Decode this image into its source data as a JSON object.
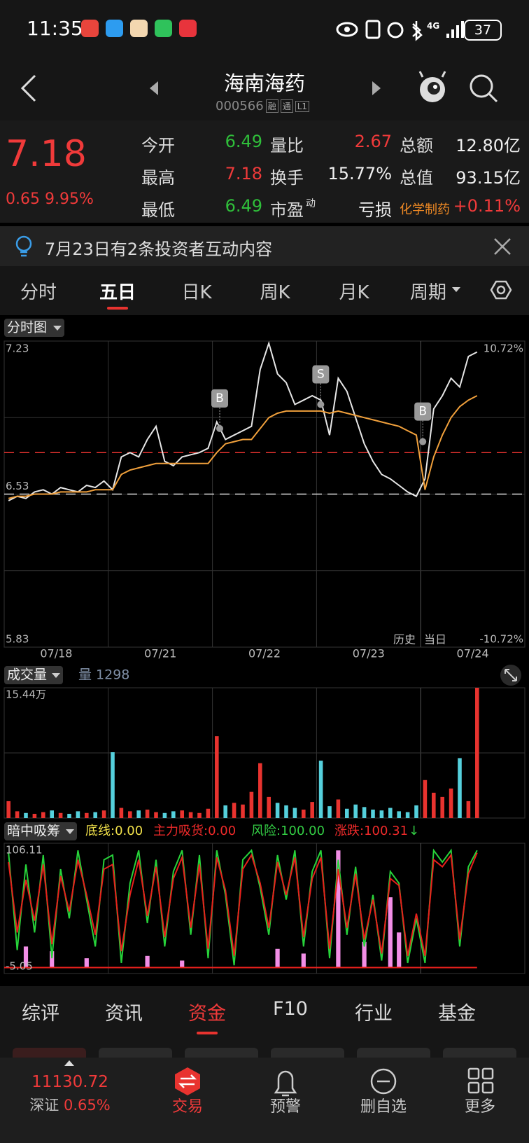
{
  "status": {
    "time": "11:35",
    "network": "4G",
    "battery": "37"
  },
  "header": {
    "title": "海南海药",
    "code": "000566",
    "badges": [
      "融",
      "通",
      "L1"
    ]
  },
  "quote": {
    "price": "7.18",
    "change": "0.65",
    "pct": "9.95%",
    "rows": [
      [
        {
          "label": "今开",
          "value": "6.49",
          "tone": "down"
        },
        {
          "label": "量比",
          "value": "2.67",
          "tone": "up"
        },
        {
          "label": "总额",
          "value": "12.80亿",
          "tone": "plain"
        }
      ],
      [
        {
          "label": "最高",
          "value": "7.18",
          "tone": "up"
        },
        {
          "label": "换手",
          "value": "15.77%",
          "tone": "plain"
        },
        {
          "label": "总值",
          "value": "93.15亿",
          "tone": "plain"
        }
      ],
      [
        {
          "label": "最低",
          "value": "6.49",
          "tone": "down"
        },
        {
          "label": "市盈",
          "sup": "动",
          "value": "亏损",
          "tone": "plain"
        },
        {
          "label": "化学制药",
          "label_tone": "sector",
          "value": "+0.11%",
          "tone": "up"
        }
      ]
    ]
  },
  "notice": "7月23日有2条投资者互动内容",
  "tabs": {
    "items": [
      "分时",
      "五日",
      "日K",
      "周K",
      "月K",
      "周期"
    ],
    "active": 1
  },
  "chart_data": [
    {
      "type": "line",
      "title": "分时图",
      "categories": [
        "07/18",
        "07/21",
        "07/22",
        "07/23",
        "07/24"
      ],
      "ylim": [
        5.83,
        7.23
      ],
      "yticks": [
        7.23,
        6.53,
        5.83
      ],
      "y2lim": [
        -10.72,
        10.72
      ],
      "y2ticks": [
        {
          "value": 10.72,
          "label": "10.72%"
        },
        {
          "value": -10.72,
          "label": "-10.72%"
        }
      ],
      "prev_close": 6.53,
      "cost_line": 6.72,
      "series": [
        {
          "color": "#e6e6e6",
          "values": [
            [
              6.5,
              6.52,
              6.51,
              6.54,
              6.55,
              6.53,
              6.56,
              6.55,
              6.54,
              6.57,
              6.56,
              6.59
            ],
            [
              6.55,
              6.7,
              6.72,
              6.7,
              6.78,
              6.84,
              6.68,
              6.66,
              6.7,
              6.71,
              6.72,
              6.74
            ],
            [
              6.86,
              6.78,
              6.8,
              6.82,
              6.84,
              7.1,
              7.22,
              7.08,
              7.04,
              6.94,
              6.96,
              6.98
            ],
            [
              6.96,
              6.8,
              7.06,
              7.0,
              6.88,
              6.76,
              6.68,
              6.62,
              6.6,
              6.57,
              6.54,
              6.52
            ],
            [
              6.6,
              6.92,
              6.98,
              7.06,
              7.02,
              7.16,
              7.18
            ]
          ]
        },
        {
          "color": "#f0a03c",
          "values": [
            [
              6.51,
              6.52,
              6.52,
              6.53,
              6.53,
              6.53,
              6.54,
              6.54,
              6.54,
              6.54,
              6.55,
              6.55
            ],
            [
              6.55,
              6.62,
              6.64,
              6.65,
              6.66,
              6.67,
              6.67,
              6.67,
              6.67,
              6.67,
              6.67,
              6.67
            ],
            [
              6.72,
              6.76,
              6.77,
              6.78,
              6.78,
              6.83,
              6.88,
              6.9,
              6.91,
              6.91,
              6.91,
              6.91
            ],
            [
              6.91,
              6.9,
              6.91,
              6.9,
              6.89,
              6.88,
              6.87,
              6.86,
              6.85,
              6.84,
              6.82,
              6.8
            ],
            [
              6.55,
              6.7,
              6.8,
              6.88,
              6.93,
              6.96,
              6.98
            ]
          ]
        }
      ],
      "signals": [
        {
          "label": "B",
          "x": 2.07,
          "y": 6.83
        },
        {
          "label": "S",
          "x": 3.04,
          "y": 6.94
        },
        {
          "label": "B",
          "x": 4.02,
          "y": 6.77
        }
      ],
      "notes": [
        "历史",
        "当日"
      ]
    },
    {
      "type": "bar",
      "title": "成交量",
      "subtitle": "量 1298",
      "ylim": [
        0,
        15.44
      ],
      "yticks": [
        {
          "value": 15.44,
          "label": "15.44万"
        }
      ],
      "colors": {
        "up": "#e8332f",
        "down": "#55d0dc"
      },
      "values": [
        [
          2.0,
          0.8,
          0.6,
          0.5,
          0.7,
          0.9,
          0.6,
          0.5,
          0.8,
          0.6,
          0.7,
          0.9
        ],
        [
          7.8,
          1.2,
          0.8,
          0.9,
          1.0,
          0.7,
          0.6,
          0.8,
          0.9,
          0.7,
          0.6,
          1.1
        ],
        [
          9.7,
          1.5,
          1.8,
          1.6,
          3.1,
          6.5,
          2.5,
          1.8,
          1.5,
          1.2,
          1.0,
          1.9
        ],
        [
          6.8,
          1.4,
          2.2,
          1.1,
          1.6,
          1.3,
          1.0,
          0.9,
          1.2,
          0.8,
          0.7,
          1.5
        ],
        [
          4.5,
          3.0,
          2.5,
          3.5,
          7.1,
          2.0,
          15.44
        ]
      ]
    },
    {
      "type": "line",
      "title": "暗中吸筹",
      "legend": [
        {
          "text": "底线:0.00",
          "color": "#f0e04a"
        },
        {
          "text": "主力吸货:0.00",
          "color": "#ee2a2a"
        },
        {
          "text": "风险:100.00",
          "color": "#33cc44"
        },
        {
          "text": "涨跌:100.31",
          "color": "#ee2a2a",
          "arrow": "↓",
          "arrow_color": "#33cc44"
        }
      ],
      "ylim": [
        -5.05,
        106.11
      ],
      "yticks": [
        106.11,
        -5.05
      ],
      "bars": {
        "color": "#f28ee6",
        "values": [
          [
            0,
            0,
            18,
            0,
            0,
            14,
            0,
            0,
            0,
            8,
            0,
            0
          ],
          [
            0,
            0,
            0,
            0,
            10,
            0,
            0,
            0,
            6,
            0,
            0,
            0
          ],
          [
            0,
            0,
            0,
            0,
            0,
            0,
            0,
            16,
            0,
            0,
            12,
            0
          ],
          [
            0,
            0,
            100,
            0,
            0,
            22,
            0,
            0,
            60,
            30,
            0,
            0
          ],
          [
            0,
            0,
            0,
            0,
            0,
            0,
            0
          ]
        ]
      },
      "series": [
        {
          "color": "#27d33a",
          "values": [
            [
              98,
              15,
              88,
              30,
              96,
              8,
              84,
              42,
              100,
              58,
              18,
              92
            ],
            [
              96,
              4,
              72,
              100,
              38,
              92,
              18,
              82,
              100,
              28,
              96,
              8
            ],
            [
              100,
              62,
              2,
              92,
              100,
              68,
              28,
              96,
              58,
              100,
              18,
              82
            ],
            [
              100,
              8,
              92,
              28,
              86,
              18,
              62,
              6,
              82,
              72,
              4,
              42
            ],
            [
              4,
              100,
              90,
              100,
              18,
              86,
              100
            ]
          ]
        },
        {
          "color": "#e8201c",
          "values": [
            [
              90,
              30,
              75,
              40,
              88,
              20,
              78,
              48,
              92,
              62,
              28,
              84
            ],
            [
              88,
              14,
              62,
              92,
              44,
              86,
              26,
              76,
              94,
              34,
              88,
              16
            ],
            [
              94,
              66,
              10,
              84,
              96,
              72,
              34,
              90,
              62,
              94,
              26,
              76
            ],
            [
              94,
              16,
              84,
              34,
              80,
              24,
              58,
              12,
              76,
              70,
              10,
              46
            ],
            [
              10,
              92,
              86,
              96,
              24,
              80,
              98
            ]
          ]
        }
      ]
    }
  ],
  "bottom_tabs": {
    "items": [
      "综评",
      "资讯",
      "资金",
      "F10",
      "行业",
      "基金"
    ],
    "active": 2
  },
  "nav": {
    "index_value": "11130.72",
    "index_name": "深证",
    "index_pct": "0.65%",
    "items": [
      "交易",
      "预警",
      "删自选",
      "更多"
    ],
    "active": 0
  }
}
